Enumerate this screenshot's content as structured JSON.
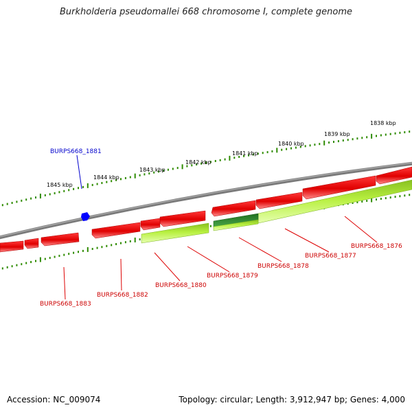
{
  "title": "Burkholderia pseudomallei 668 chromosome I, complete genome",
  "footer": {
    "accession": "Accession: NC_009074",
    "summary": "Topology: circular; Length: 3,912,947 bp; Genes: 4,000"
  },
  "colors": {
    "backbone": "#808080",
    "tick": "#2e8b00",
    "gene_forward": "#e00000",
    "gene_reverse": "#aaee33",
    "gene_reverse_highlight": "#2e8b2e",
    "label_red": "#cc0000",
    "label_blue": "#0000cc",
    "marker": "#0000ff"
  },
  "kbp_markers": [
    "1838 kbp",
    "1839 kbp",
    "1840 kbp",
    "1841 kbp",
    "1842 kbp",
    "1843 kbp",
    "1844 kbp",
    "1845 kbp"
  ],
  "genes": [
    {
      "id": "BURPS668_1876",
      "strand": "reverse"
    },
    {
      "id": "BURPS668_1877",
      "strand": "reverse"
    },
    {
      "id": "BURPS668_1878",
      "strand": "reverse"
    },
    {
      "id": "BURPS668_1879",
      "strand": "reverse"
    },
    {
      "id": "BURPS668_1880",
      "strand": "reverse"
    },
    {
      "id": "BURPS668_1881",
      "strand": "marker"
    },
    {
      "id": "BURPS668_1882",
      "strand": "forward"
    },
    {
      "id": "BURPS668_1883",
      "strand": "forward"
    }
  ]
}
